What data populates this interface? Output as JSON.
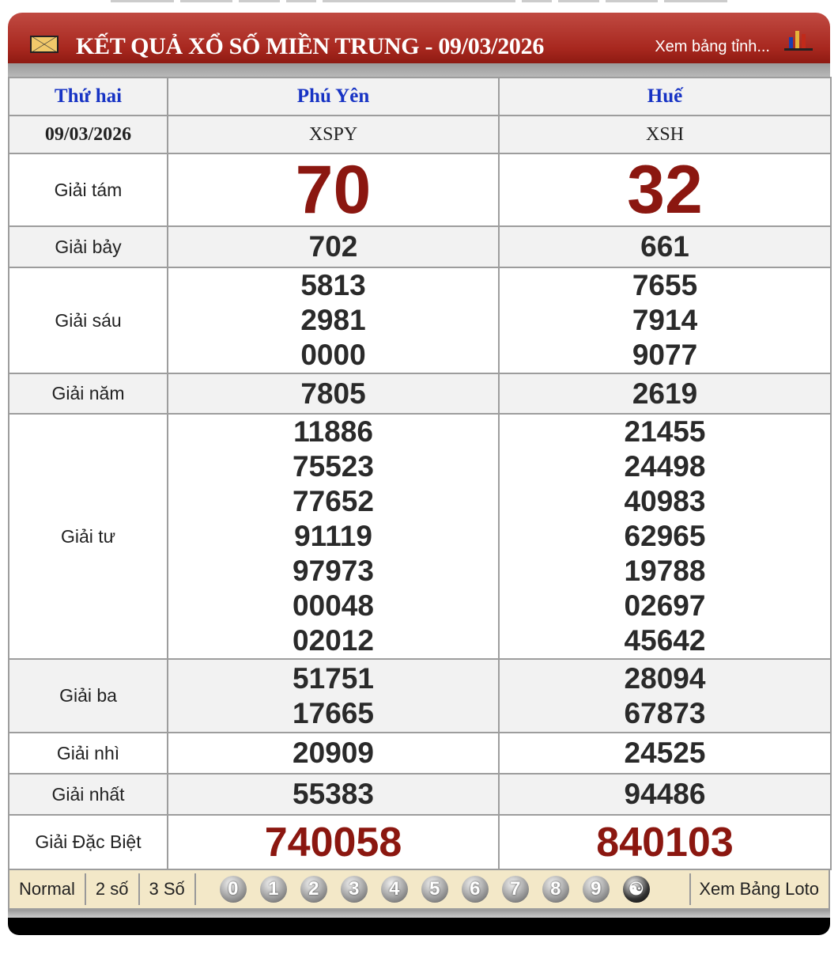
{
  "header": {
    "title": "KẾT QUẢ XỔ SỐ MIỀN TRUNG - 09/03/2026",
    "more_link": "Xem bảng tỉnh..."
  },
  "table": {
    "day": "Thứ hai",
    "date": "09/03/2026",
    "provinces": [
      {
        "name": "Phú Yên",
        "code": "XSPY"
      },
      {
        "name": "Huế",
        "code": "XSH"
      }
    ],
    "prizes": [
      {
        "label": "Giải tám",
        "values": [
          [
            "70"
          ],
          [
            "32"
          ]
        ]
      },
      {
        "label": "Giải bảy",
        "values": [
          [
            "702"
          ],
          [
            "661"
          ]
        ]
      },
      {
        "label": "Giải sáu",
        "values": [
          [
            "5813",
            "2981",
            "0000"
          ],
          [
            "7655",
            "7914",
            "9077"
          ]
        ]
      },
      {
        "label": "Giải năm",
        "values": [
          [
            "7805"
          ],
          [
            "2619"
          ]
        ]
      },
      {
        "label": "Giải tư",
        "values": [
          [
            "11886",
            "75523",
            "77652",
            "91119",
            "97973",
            "00048",
            "02012"
          ],
          [
            "21455",
            "24498",
            "40983",
            "62965",
            "19788",
            "02697",
            "45642"
          ]
        ]
      },
      {
        "label": "Giải ba",
        "values": [
          [
            "51751",
            "17665"
          ],
          [
            "28094",
            "67873"
          ]
        ]
      },
      {
        "label": "Giải nhì",
        "values": [
          [
            "20909"
          ],
          [
            "24525"
          ]
        ]
      },
      {
        "label": "Giải nhất",
        "values": [
          [
            "55383"
          ],
          [
            "94486"
          ]
        ]
      },
      {
        "label": "Giải Đặc Biệt",
        "values": [
          [
            "740058"
          ],
          [
            "840103"
          ]
        ]
      }
    ]
  },
  "toolbar": {
    "modes": [
      "Normal",
      "2 số",
      "3 Số"
    ],
    "digits": [
      "0",
      "1",
      "2",
      "3",
      "4",
      "5",
      "6",
      "7",
      "8",
      "9"
    ],
    "yinyang_icon": "yin-yang-icon",
    "loto_link": "Xem Bảng Loto"
  },
  "colors": {
    "header_red": "#a8281f",
    "prize_red": "#8b1710",
    "province_blue": "#1733c4",
    "toolbar_bg": "#f3e8c8"
  }
}
